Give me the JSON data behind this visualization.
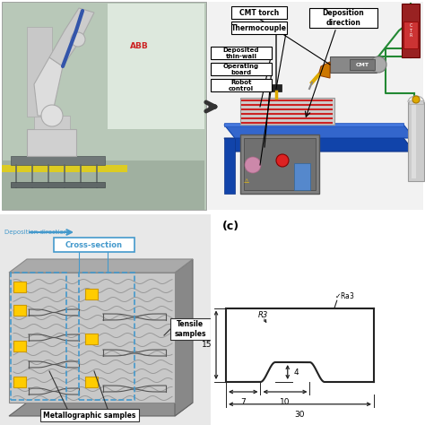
{
  "bg_color": "#ffffff",
  "panel_c_label": "(c)",
  "dim_30": "30",
  "dim_10": "10",
  "dim_7": "7",
  "dim_15": "15",
  "dim_4": "4",
  "dim_R3": "R3",
  "dim_Ra3": "Ra3",
  "label_cmt": "CMT torch",
  "label_thermo": "Thermocouple",
  "label_depo_dir": "Deposition\ndirection",
  "label_thin_wall": "Deposited\nthin-wall",
  "label_op_board": "Operating\nboard",
  "label_robot": "Robot\ncontrol",
  "label_cross": "Cross-section",
  "label_tensile": "Tensile\nsamples",
  "label_metallo": "Metallographic samples",
  "label_depo_direction": "Deposition direction",
  "color_line": "#222222",
  "color_blue_table": "#2255bb",
  "color_green_wire": "#228833",
  "color_yellow": "#ffcc00",
  "color_red_device": "#aa1111",
  "color_gray_cyl": "#bbbbbb",
  "color_cross_section": "#4499cc"
}
